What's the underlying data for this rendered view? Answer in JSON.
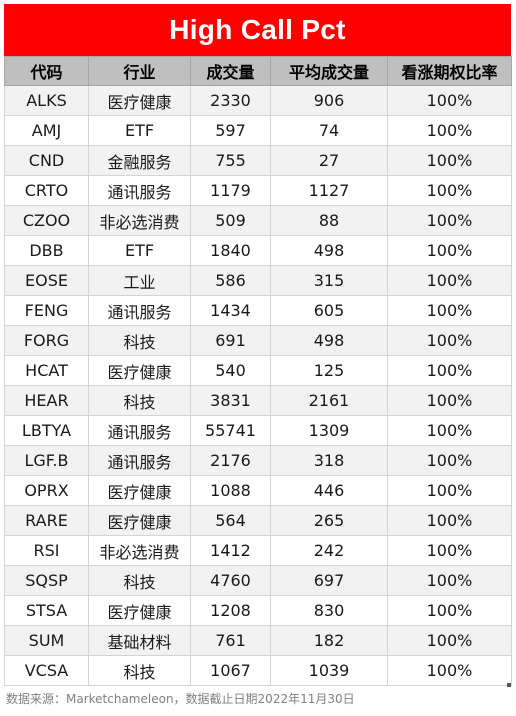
{
  "title": "High Call Pct",
  "columns": [
    "代码",
    "行业",
    "成交量",
    "平均成交量",
    "看涨期权比率"
  ],
  "rows": [
    [
      "ALKS",
      "医疗健康",
      "2330",
      "906",
      "100%"
    ],
    [
      "AMJ",
      "ETF",
      "597",
      "74",
      "100%"
    ],
    [
      "CND",
      "金融服务",
      "755",
      "27",
      "100%"
    ],
    [
      "CRTO",
      "通讯服务",
      "1179",
      "1127",
      "100%"
    ],
    [
      "CZOO",
      "非必选消费",
      "509",
      "88",
      "100%"
    ],
    [
      "DBB",
      "ETF",
      "1840",
      "498",
      "100%"
    ],
    [
      "EOSE",
      "工业",
      "586",
      "315",
      "100%"
    ],
    [
      "FENG",
      "通讯服务",
      "1434",
      "605",
      "100%"
    ],
    [
      "FORG",
      "科技",
      "691",
      "498",
      "100%"
    ],
    [
      "HCAT",
      "医疗健康",
      "540",
      "125",
      "100%"
    ],
    [
      "HEAR",
      "科技",
      "3831",
      "2161",
      "100%"
    ],
    [
      "LBTYA",
      "通讯服务",
      "55741",
      "1309",
      "100%"
    ],
    [
      "LGF.B",
      "通讯服务",
      "2176",
      "318",
      "100%"
    ],
    [
      "OPRX",
      "医疗健康",
      "1088",
      "446",
      "100%"
    ],
    [
      "RARE",
      "医疗健康",
      "564",
      "265",
      "100%"
    ],
    [
      "RSI",
      "非必选消费",
      "1412",
      "242",
      "100%"
    ],
    [
      "SQSP",
      "科技",
      "4760",
      "697",
      "100%"
    ],
    [
      "STSA",
      "医疗健康",
      "1208",
      "830",
      "100%"
    ],
    [
      "SUM",
      "基础材料",
      "761",
      "182",
      "100%"
    ],
    [
      "VCSA",
      "科技",
      "1067",
      "1039",
      "100%"
    ]
  ],
  "footer": "数据来源：Marketchameleon，数据截止日期2022年11月30日",
  "colors": {
    "title_background": "#ff0000",
    "title_text": "#ffffff",
    "header_background": "#bfbfbf",
    "row_alt_background": "#f2f2f2",
    "footer_text": "#808080"
  }
}
